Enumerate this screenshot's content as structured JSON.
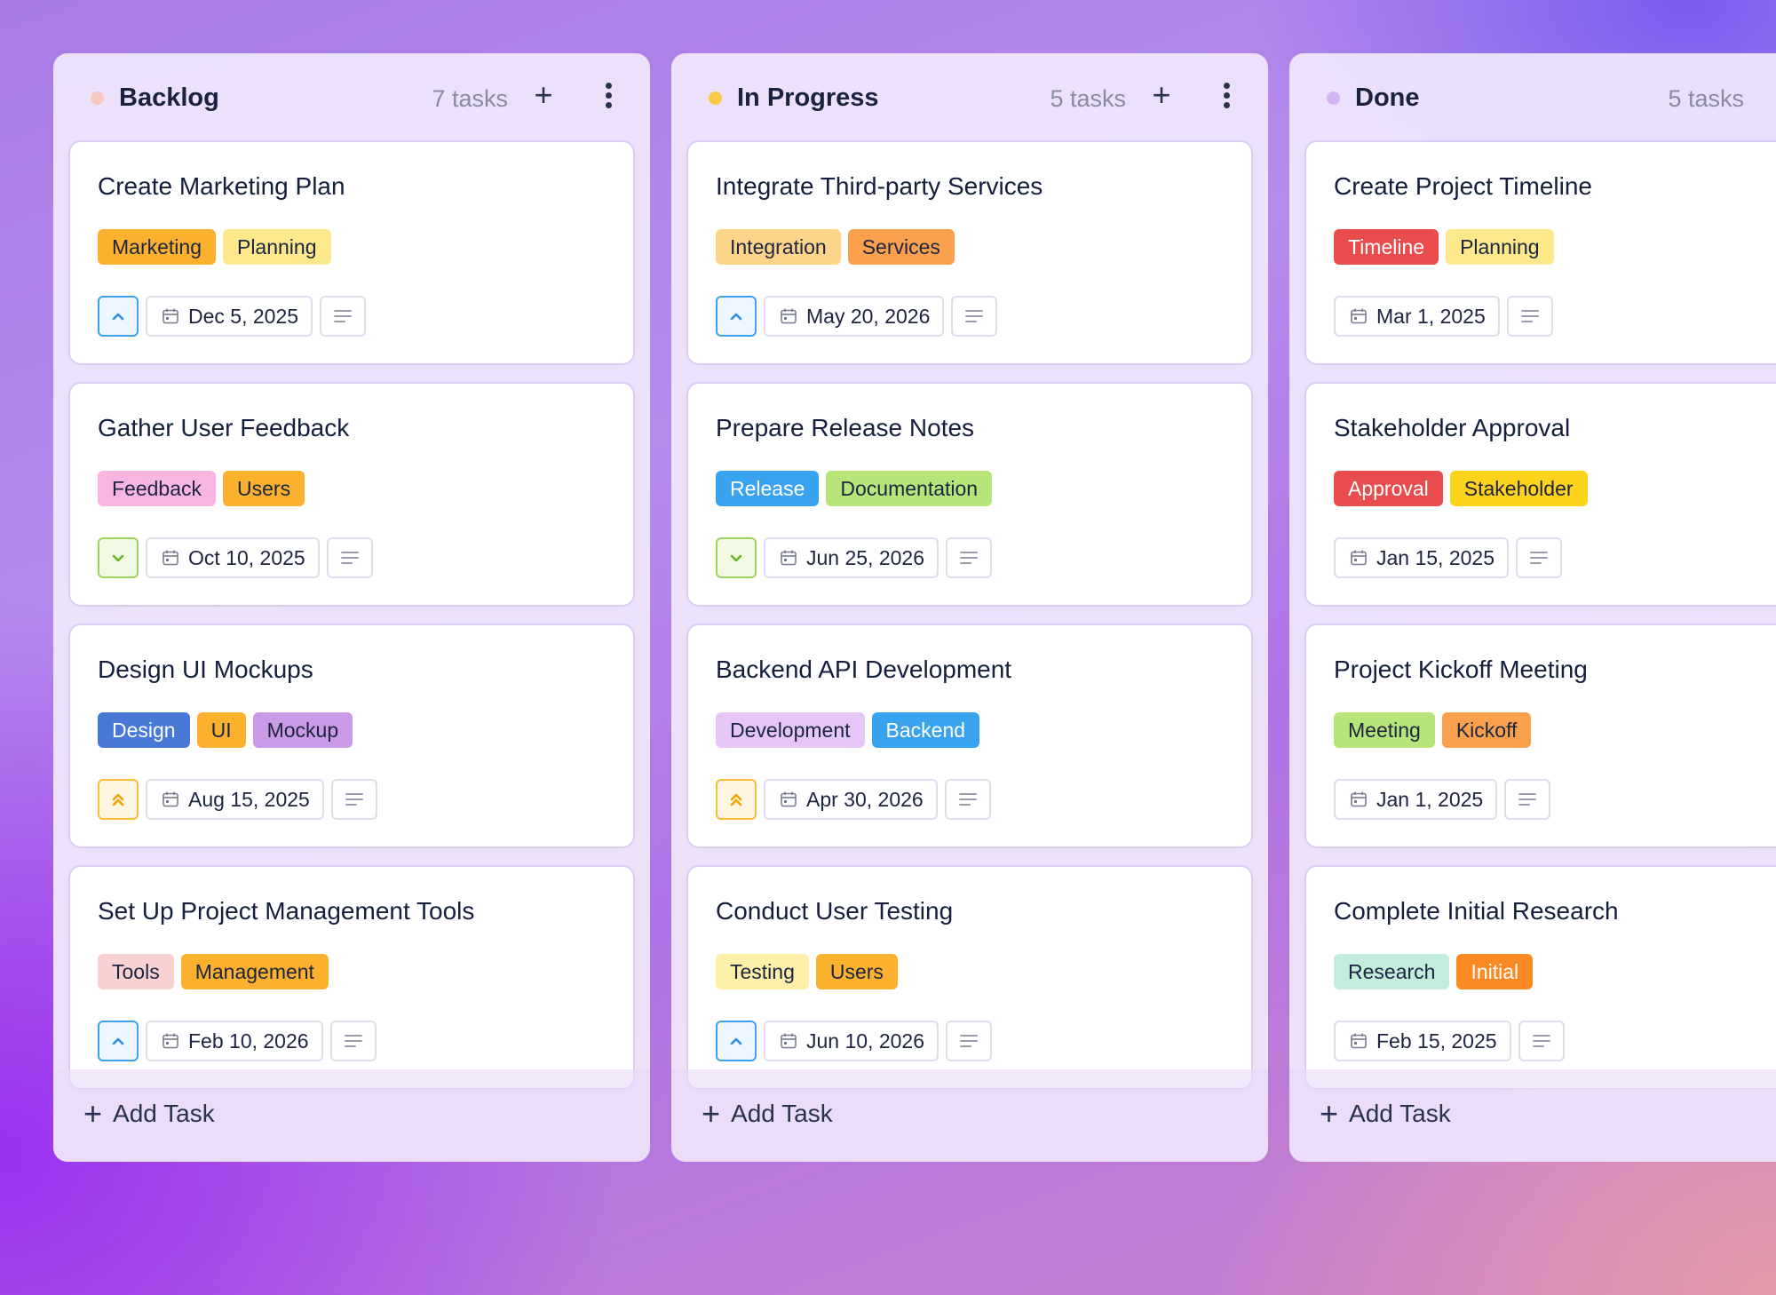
{
  "board": {
    "columns": [
      {
        "title": "Backlog",
        "count": "7 tasks",
        "dot_color": "#f6c8c0",
        "cards": [
          {
            "title": "Create Marketing Plan",
            "tags": [
              {
                "label": "Marketing",
                "color": "#fbb12e"
              },
              {
                "label": "Planning",
                "color": "#fde88c"
              }
            ],
            "priority": "high",
            "date": "Dec 5, 2025"
          },
          {
            "title": "Gather User Feedback",
            "tags": [
              {
                "label": "Feedback",
                "color": "#f7b6df"
              },
              {
                "label": "Users",
                "color": "#fbb12e"
              }
            ],
            "priority": "low",
            "date": "Oct 10, 2025"
          },
          {
            "title": "Design UI Mockups",
            "tags": [
              {
                "label": "Design",
                "color": "#4a78d6"
              },
              {
                "label": "UI",
                "color": "#fbb12e"
              },
              {
                "label": "Mockup",
                "color": "#c99ae6"
              }
            ],
            "priority": "urgent",
            "date": "Aug 15, 2025"
          },
          {
            "title": "Set Up Project Management Tools",
            "tags": [
              {
                "label": "Tools",
                "color": "#f8d2d2"
              },
              {
                "label": "Management",
                "color": "#fbb12e"
              }
            ],
            "priority": "high",
            "date": "Feb 10, 2026"
          }
        ],
        "add_label": "Add Task"
      },
      {
        "title": "In Progress",
        "count": "5 tasks",
        "dot_color": "#fbc944",
        "cards": [
          {
            "title": "Integrate Third-party Services",
            "tags": [
              {
                "label": "Integration",
                "color": "#fdd58a"
              },
              {
                "label": "Services",
                "color": "#fba14e"
              }
            ],
            "priority": "high",
            "date": "May 20, 2026"
          },
          {
            "title": "Prepare Release Notes",
            "tags": [
              {
                "label": "Release",
                "color": "#3aa3f0"
              },
              {
                "label": "Documentation",
                "color": "#b8e57a"
              }
            ],
            "priority": "low",
            "date": "Jun 25, 2026"
          },
          {
            "title": "Backend API Development",
            "tags": [
              {
                "label": "Development",
                "color": "#e6c6f6"
              },
              {
                "label": "Backend",
                "color": "#3aa3f0"
              }
            ],
            "priority": "urgent",
            "date": "Apr 30, 2026"
          },
          {
            "title": "Conduct User Testing",
            "tags": [
              {
                "label": "Testing",
                "color": "#fef0a8"
              },
              {
                "label": "Users",
                "color": "#fbb12e"
              }
            ],
            "priority": "high",
            "date": "Jun 10, 2026"
          }
        ],
        "add_label": "Add Task"
      },
      {
        "title": "Done",
        "count": "5 tasks",
        "dot_color": "#d4b4f2",
        "cards": [
          {
            "title": "Create Project Timeline",
            "tags": [
              {
                "label": "Timeline",
                "color": "#e84c4c"
              },
              {
                "label": "Planning",
                "color": "#fde88c"
              }
            ],
            "priority": "none",
            "date": "Mar 1, 2025"
          },
          {
            "title": "Stakeholder Approval",
            "tags": [
              {
                "label": "Approval",
                "color": "#e84c4c"
              },
              {
                "label": "Stakeholder",
                "color": "#fdd31c"
              }
            ],
            "priority": "none",
            "date": "Jan 15, 2025"
          },
          {
            "title": "Project Kickoff Meeting",
            "tags": [
              {
                "label": "Meeting",
                "color": "#b8e57a"
              },
              {
                "label": "Kickoff",
                "color": "#fba14e"
              }
            ],
            "priority": "none",
            "date": "Jan 1, 2025"
          },
          {
            "title": "Complete Initial Research",
            "tags": [
              {
                "label": "Research",
                "color": "#c4ecdc"
              },
              {
                "label": "Initial",
                "color": "#fb8a24"
              }
            ],
            "priority": "none",
            "date": "Feb 15, 2025"
          }
        ],
        "add_label": "Add Task"
      }
    ]
  }
}
